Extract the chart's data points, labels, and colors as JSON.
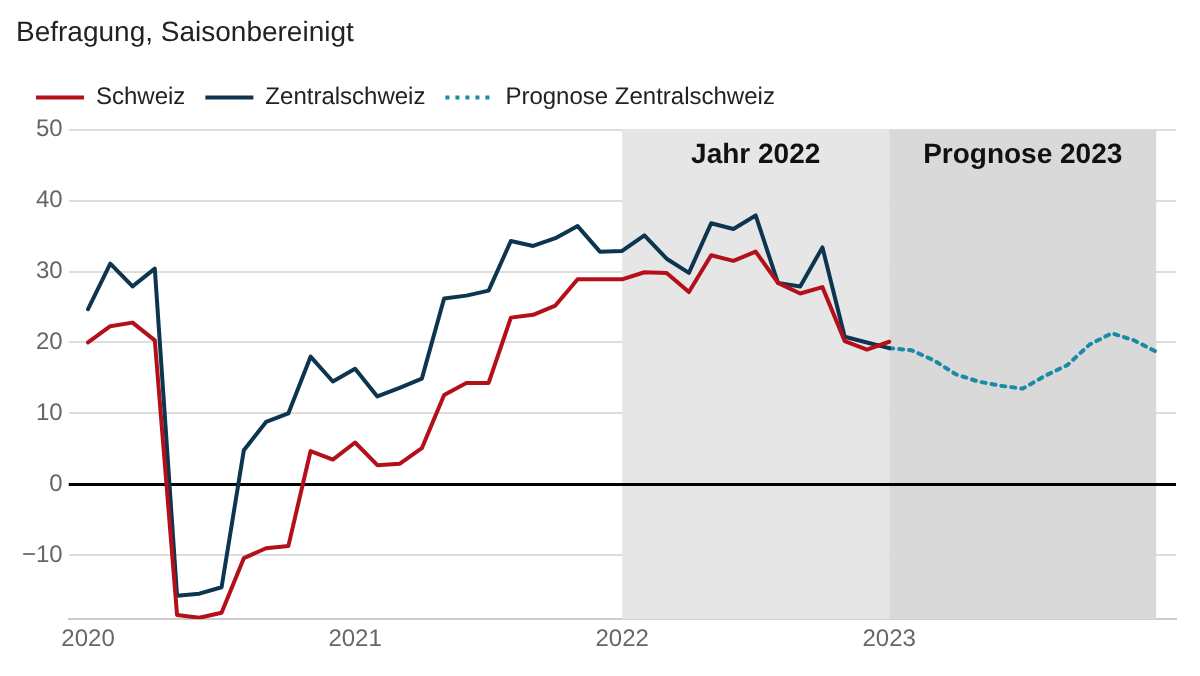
{
  "chart_data": {
    "type": "line",
    "title": "Befragung, Saisonbereinigt",
    "x": [
      "2020-01",
      "2020-02",
      "2020-03",
      "2020-04",
      "2020-05",
      "2020-06",
      "2020-07",
      "2020-08",
      "2020-09",
      "2020-10",
      "2020-11",
      "2020-12",
      "2021-01",
      "2021-02",
      "2021-03",
      "2021-04",
      "2021-05",
      "2021-06",
      "2021-07",
      "2021-08",
      "2021-09",
      "2021-10",
      "2021-11",
      "2021-12",
      "2022-01",
      "2022-02",
      "2022-03",
      "2022-04",
      "2022-05",
      "2022-06",
      "2022-07",
      "2022-08",
      "2022-09",
      "2022-10",
      "2022-11",
      "2022-12",
      "2023-01"
    ],
    "series": [
      {
        "name": "Schweiz",
        "color": "#b3101a",
        "line_style": "solid",
        "values": [
          20.0,
          22.3,
          22.8,
          20.3,
          -18.4,
          -18.8,
          -18.1,
          -10.4,
          -9.0,
          -8.7,
          4.7,
          3.5,
          5.9,
          2.7,
          2.9,
          5.1,
          12.6,
          14.3,
          14.3,
          23.5,
          23.9,
          25.2,
          28.9,
          28.9,
          28.9,
          29.9,
          29.8,
          27.1,
          32.3,
          31.5,
          32.8,
          28.4,
          26.9,
          27.8,
          20.2,
          19.0,
          20.1
        ]
      },
      {
        "name": "Zentralschweiz",
        "color": "#0d3550",
        "line_style": "solid",
        "values": [
          24.7,
          31.1,
          27.9,
          30.4,
          -15.7,
          -15.4,
          -14.5,
          4.8,
          8.8,
          10.0,
          18.0,
          14.5,
          16.3,
          12.4,
          13.6,
          14.9,
          26.2,
          26.6,
          27.3,
          34.3,
          33.6,
          34.7,
          36.4,
          32.8,
          32.9,
          35.1,
          31.8,
          29.8,
          36.8,
          36.0,
          37.9,
          28.4,
          27.9,
          33.4,
          20.8,
          20.0,
          19.2
        ]
      },
      {
        "name": "Prognose Zentralschweiz",
        "color": "#1a8aa6",
        "line_style": "dotted",
        "x": [
          "2023-01",
          "2023-02",
          "2023-03",
          "2023-04",
          "2023-05",
          "2023-06",
          "2023-07",
          "2023-08",
          "2023-09",
          "2023-10",
          "2023-11",
          "2023-12",
          "2024-01"
        ],
        "values": [
          19.2,
          18.9,
          17.5,
          15.5,
          14.5,
          13.9,
          13.5,
          15.3,
          16.8,
          19.7,
          21.3,
          20.3,
          18.7
        ]
      }
    ],
    "xlim": [
      "2019-12-05",
      "2024-01-28"
    ],
    "xticks": [
      "2020",
      "2021",
      "2022",
      "2023"
    ],
    "ylim": [
      -19,
      50
    ],
    "yticks": [
      -10,
      0,
      10,
      20,
      30,
      40,
      50
    ],
    "grid": "y",
    "legend": "top left",
    "marker": "none",
    "ref_lines": [
      {
        "axis": "y",
        "value": 0,
        "color": "#000000"
      }
    ],
    "bands": [
      {
        "axis": "x",
        "from": "2022-01",
        "to": "2023-01",
        "label": "Jahr 2022",
        "color": "#e6e6e6"
      },
      {
        "axis": "x",
        "from": "2023-01",
        "to": "2024-01",
        "label": "Prognose 2023",
        "color": "#d9d9d9"
      }
    ]
  }
}
